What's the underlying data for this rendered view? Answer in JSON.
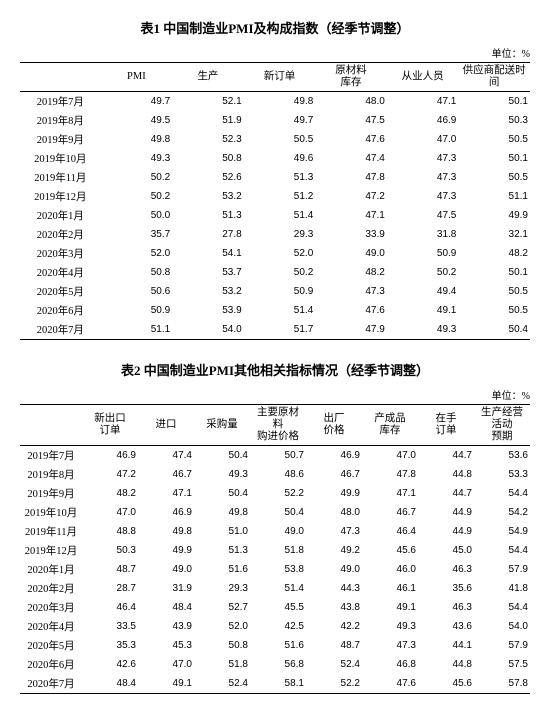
{
  "unit_label": "单位：%",
  "table1": {
    "title": "表1  中国制造业PMI及构成指数（经季节调整）",
    "columns": [
      "",
      "PMI",
      "生产",
      "新订单",
      "原材料\n库存",
      "从业人员",
      "供应商配送时\n间"
    ],
    "rows": [
      [
        "2019年7月",
        "49.7",
        "52.1",
        "49.8",
        "48.0",
        "47.1",
        "50.1"
      ],
      [
        "2019年8月",
        "49.5",
        "51.9",
        "49.7",
        "47.5",
        "46.9",
        "50.3"
      ],
      [
        "2019年9月",
        "49.8",
        "52.3",
        "50.5",
        "47.6",
        "47.0",
        "50.5"
      ],
      [
        "2019年10月",
        "49.3",
        "50.8",
        "49.6",
        "47.4",
        "47.3",
        "50.1"
      ],
      [
        "2019年11月",
        "50.2",
        "52.6",
        "51.3",
        "47.8",
        "47.3",
        "50.5"
      ],
      [
        "2019年12月",
        "50.2",
        "53.2",
        "51.2",
        "47.2",
        "47.3",
        "51.1"
      ],
      [
        "2020年1月",
        "50.0",
        "51.3",
        "51.4",
        "47.1",
        "47.5",
        "49.9"
      ],
      [
        "2020年2月",
        "35.7",
        "27.8",
        "29.3",
        "33.9",
        "31.8",
        "32.1"
      ],
      [
        "2020年3月",
        "52.0",
        "54.1",
        "52.0",
        "49.0",
        "50.9",
        "48.2"
      ],
      [
        "2020年4月",
        "50.8",
        "53.7",
        "50.2",
        "48.2",
        "50.2",
        "50.1"
      ],
      [
        "2020年5月",
        "50.6",
        "53.2",
        "50.9",
        "47.3",
        "49.4",
        "50.5"
      ],
      [
        "2020年6月",
        "50.9",
        "53.9",
        "51.4",
        "47.6",
        "49.1",
        "50.5"
      ],
      [
        "2020年7月",
        "51.1",
        "54.0",
        "51.7",
        "47.9",
        "49.3",
        "50.4"
      ]
    ]
  },
  "table2": {
    "title": "表2  中国制造业PMI其他相关指标情况（经季节调整）",
    "columns": [
      "",
      "新出口\n订单",
      "进口",
      "采购量",
      "主要原材料\n购进价格",
      "出厂\n价格",
      "产成品\n库存",
      "在手\n订单",
      "生产经营活动\n预期"
    ],
    "rows": [
      [
        "2019年7月",
        "46.9",
        "47.4",
        "50.4",
        "50.7",
        "46.9",
        "47.0",
        "44.7",
        "53.6"
      ],
      [
        "2019年8月",
        "47.2",
        "46.7",
        "49.3",
        "48.6",
        "46.7",
        "47.8",
        "44.8",
        "53.3"
      ],
      [
        "2019年9月",
        "48.2",
        "47.1",
        "50.4",
        "52.2",
        "49.9",
        "47.1",
        "44.7",
        "54.4"
      ],
      [
        "2019年10月",
        "47.0",
        "46.9",
        "49.8",
        "50.4",
        "48.0",
        "46.7",
        "44.9",
        "54.2"
      ],
      [
        "2019年11月",
        "48.8",
        "49.8",
        "51.0",
        "49.0",
        "47.3",
        "46.4",
        "44.9",
        "54.9"
      ],
      [
        "2019年12月",
        "50.3",
        "49.9",
        "51.3",
        "51.8",
        "49.2",
        "45.6",
        "45.0",
        "54.4"
      ],
      [
        "2020年1月",
        "48.7",
        "49.0",
        "51.6",
        "53.8",
        "49.0",
        "46.0",
        "46.3",
        "57.9"
      ],
      [
        "2020年2月",
        "28.7",
        "31.9",
        "29.3",
        "51.4",
        "44.3",
        "46.1",
        "35.6",
        "41.8"
      ],
      [
        "2020年3月",
        "46.4",
        "48.4",
        "52.7",
        "45.5",
        "43.8",
        "49.1",
        "46.3",
        "54.4"
      ],
      [
        "2020年4月",
        "33.5",
        "43.9",
        "52.0",
        "42.5",
        "42.2",
        "49.3",
        "43.6",
        "54.0"
      ],
      [
        "2020年5月",
        "35.3",
        "45.3",
        "50.8",
        "51.6",
        "48.7",
        "47.3",
        "44.1",
        "57.9"
      ],
      [
        "2020年6月",
        "42.6",
        "47.0",
        "51.8",
        "56.8",
        "52.4",
        "46.8",
        "44.8",
        "57.5"
      ],
      [
        "2020年7月",
        "48.4",
        "49.1",
        "52.4",
        "58.1",
        "52.2",
        "47.6",
        "45.6",
        "57.8"
      ]
    ]
  }
}
